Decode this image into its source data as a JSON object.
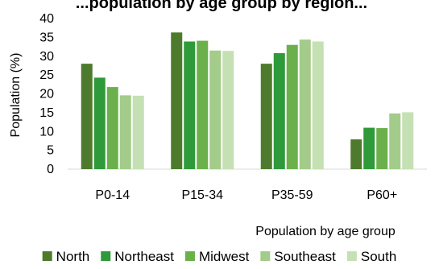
{
  "chart_data": {
    "type": "bar",
    "title": "...population by age group by region...",
    "xlabel": "Population by age group",
    "ylabel": "Population (%)",
    "ylim": [
      0,
      40
    ],
    "yticks": [
      0,
      5,
      10,
      15,
      20,
      25,
      30,
      35,
      40
    ],
    "categories": [
      "P0-14",
      "P15-34",
      "P35-59",
      "P60+"
    ],
    "series": [
      {
        "name": "North",
        "color": "#4d7a2c",
        "values": [
          28.0,
          36.3,
          28.0,
          7.9
        ]
      },
      {
        "name": "Northeast",
        "color": "#2f9a3a",
        "values": [
          24.3,
          33.9,
          30.8,
          11.0
        ]
      },
      {
        "name": "Midwest",
        "color": "#6bb04a",
        "values": [
          21.8,
          34.1,
          33.0,
          10.9
        ]
      },
      {
        "name": "Southeast",
        "color": "#a3cb8a",
        "values": [
          19.6,
          31.5,
          34.4,
          14.8
        ]
      },
      {
        "name": "South",
        "color": "#c5e0b3",
        "values": [
          19.5,
          31.4,
          33.9,
          15.1
        ]
      }
    ],
    "grid": false,
    "legend_position": "bottom"
  }
}
